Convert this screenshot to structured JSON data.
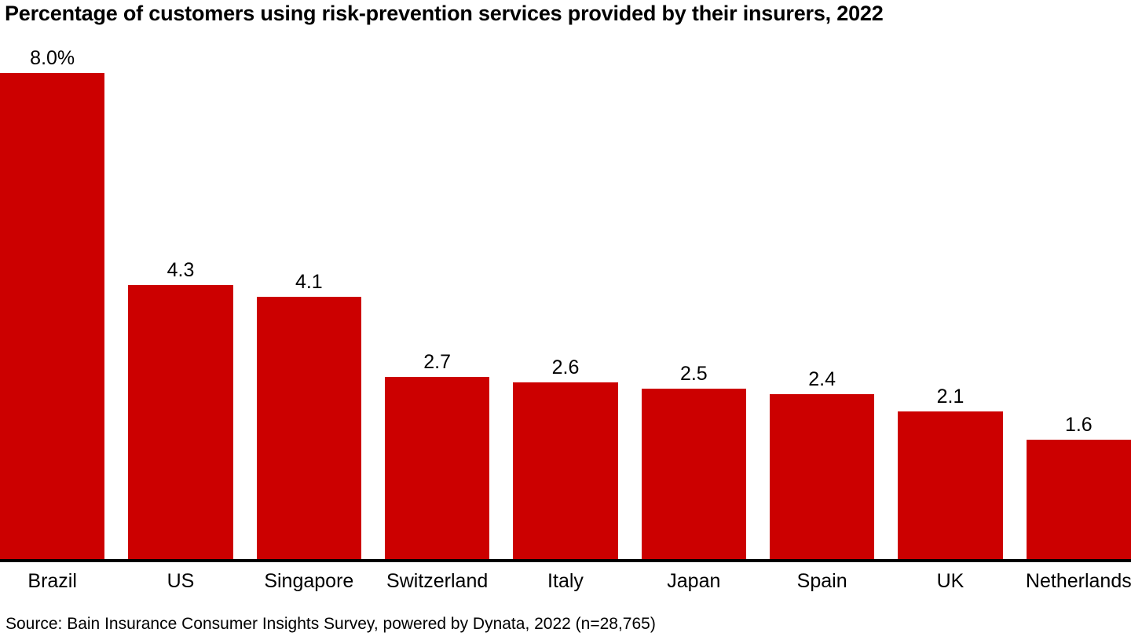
{
  "chart_data": {
    "type": "bar",
    "title": "Percentage of customers using risk-prevention services provided by their insurers, 2022",
    "categories": [
      "Brazil",
      "US",
      "Singapore",
      "Switzerland",
      "Italy",
      "Japan",
      "Spain",
      "UK",
      "Netherlands"
    ],
    "values": [
      8.0,
      4.3,
      4.1,
      2.7,
      2.6,
      2.5,
      2.4,
      2.1,
      1.6
    ],
    "value_labels": [
      "8.0%",
      "4.3",
      "4.1",
      "2.7",
      "2.6",
      "2.5",
      "2.4",
      "2.1",
      "1.6"
    ],
    "xlabel": "",
    "ylabel": "",
    "ylim": [
      0,
      8.5
    ],
    "grid": false,
    "legend": false,
    "bar_color": "#cc0000",
    "axis_color": "#000000",
    "label_color": "#000000"
  },
  "source": {
    "text": "Source: Bain Insurance Consumer Insights Survey, powered by Dynata, 2022 (n=28,765)"
  }
}
